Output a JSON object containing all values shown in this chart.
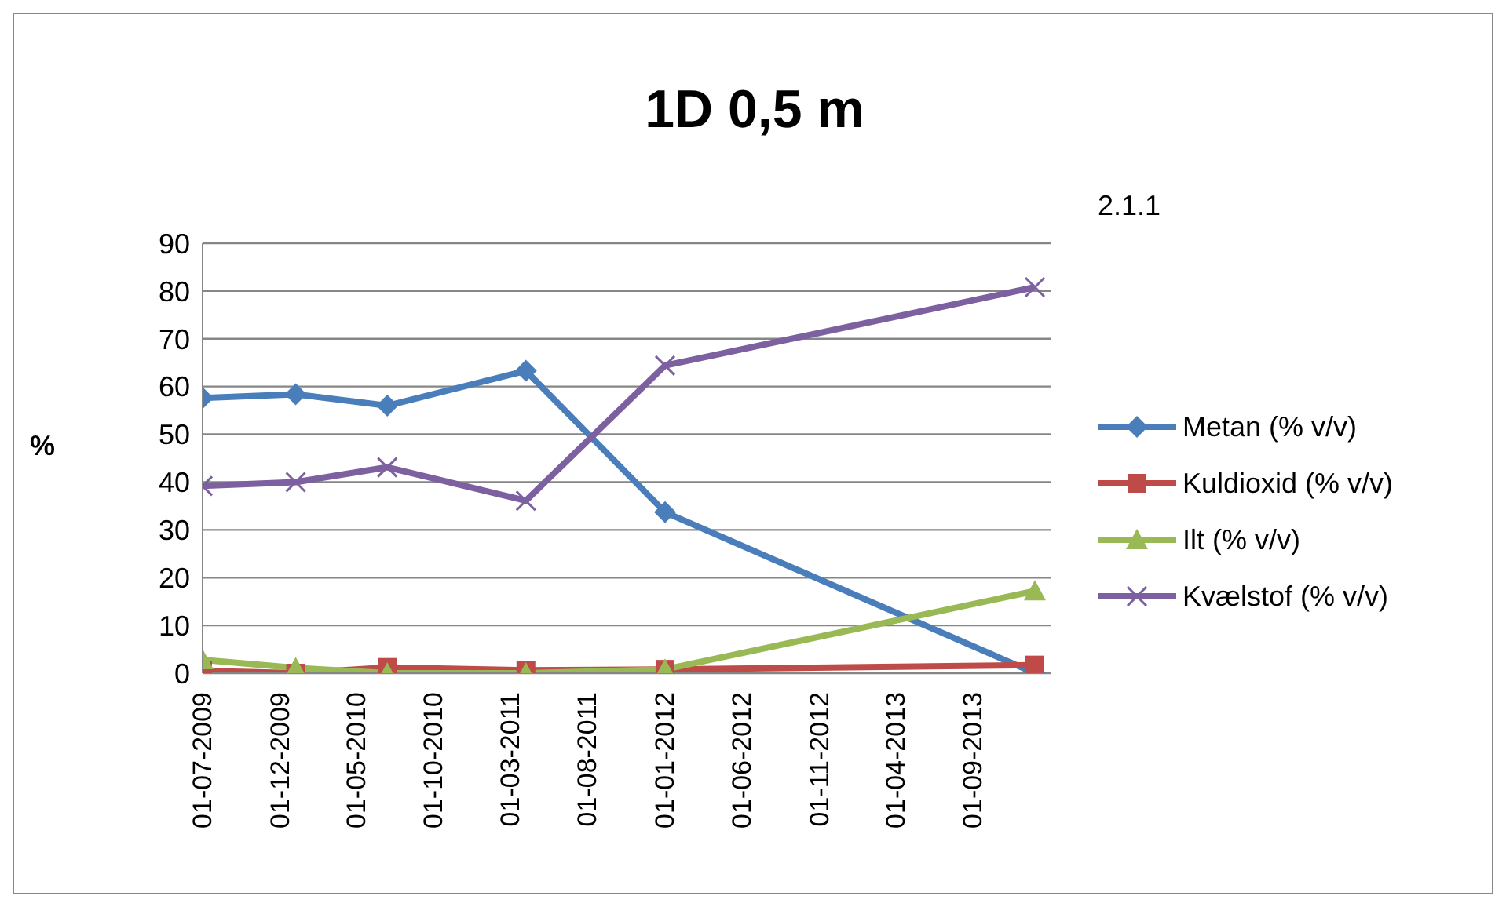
{
  "chart_data": {
    "type": "line",
    "title": "1D 0,5 m",
    "ylabel": "%",
    "annotations": [
      "2.1.1"
    ],
    "x": [
      "2009-07-01",
      "2010-01-01",
      "2010-07-01",
      "2011-04-01",
      "2012-01-01",
      "2014-01-01"
    ],
    "series": [
      {
        "name": "Metan (% v/v)",
        "color": "#4a7ebb",
        "marker": "diamond",
        "values": [
          57.6,
          58.4,
          56,
          63.3,
          33.7,
          0
        ]
      },
      {
        "name": "Kuldioxid (% v/v)",
        "color": "#be4b48",
        "marker": "square",
        "values": [
          0.5,
          0,
          1.2,
          0.6,
          0.8,
          1.7
        ]
      },
      {
        "name": "Ilt (% v/v)",
        "color": "#98b954",
        "marker": "triangle",
        "values": [
          2.8,
          1.1,
          0,
          0,
          0.8,
          17.2
        ]
      },
      {
        "name": "Kvælstof (% v/v)",
        "color": "#7d60a0",
        "marker": "cross",
        "values": [
          39.2,
          40,
          43.1,
          36.1,
          64.4,
          80.8
        ]
      }
    ],
    "xlim": [
      "2009-07-01",
      "2014-02-01"
    ],
    "xticks": [
      {
        "value": "2009-07-01",
        "label": "01-07-2009"
      },
      {
        "value": "2009-12-01",
        "label": "01-12-2009"
      },
      {
        "value": "2010-05-01",
        "label": "01-05-2010"
      },
      {
        "value": "2010-10-01",
        "label": "01-10-2010"
      },
      {
        "value": "2011-03-01",
        "label": "01-03-2011"
      },
      {
        "value": "2011-08-01",
        "label": "01-08-2011"
      },
      {
        "value": "2012-01-01",
        "label": "01-01-2012"
      },
      {
        "value": "2012-06-01",
        "label": "01-06-2012"
      },
      {
        "value": "2012-11-01",
        "label": "01-11-2012"
      },
      {
        "value": "2013-04-01",
        "label": "01-04-2013"
      },
      {
        "value": "2013-09-01",
        "label": "01-09-2013"
      }
    ],
    "ylim": [
      0,
      90
    ],
    "yticks": [
      0,
      10,
      20,
      30,
      40,
      50,
      60,
      70,
      80,
      90
    ],
    "grid": "y",
    "legend": "right",
    "line_style": "solid"
  }
}
